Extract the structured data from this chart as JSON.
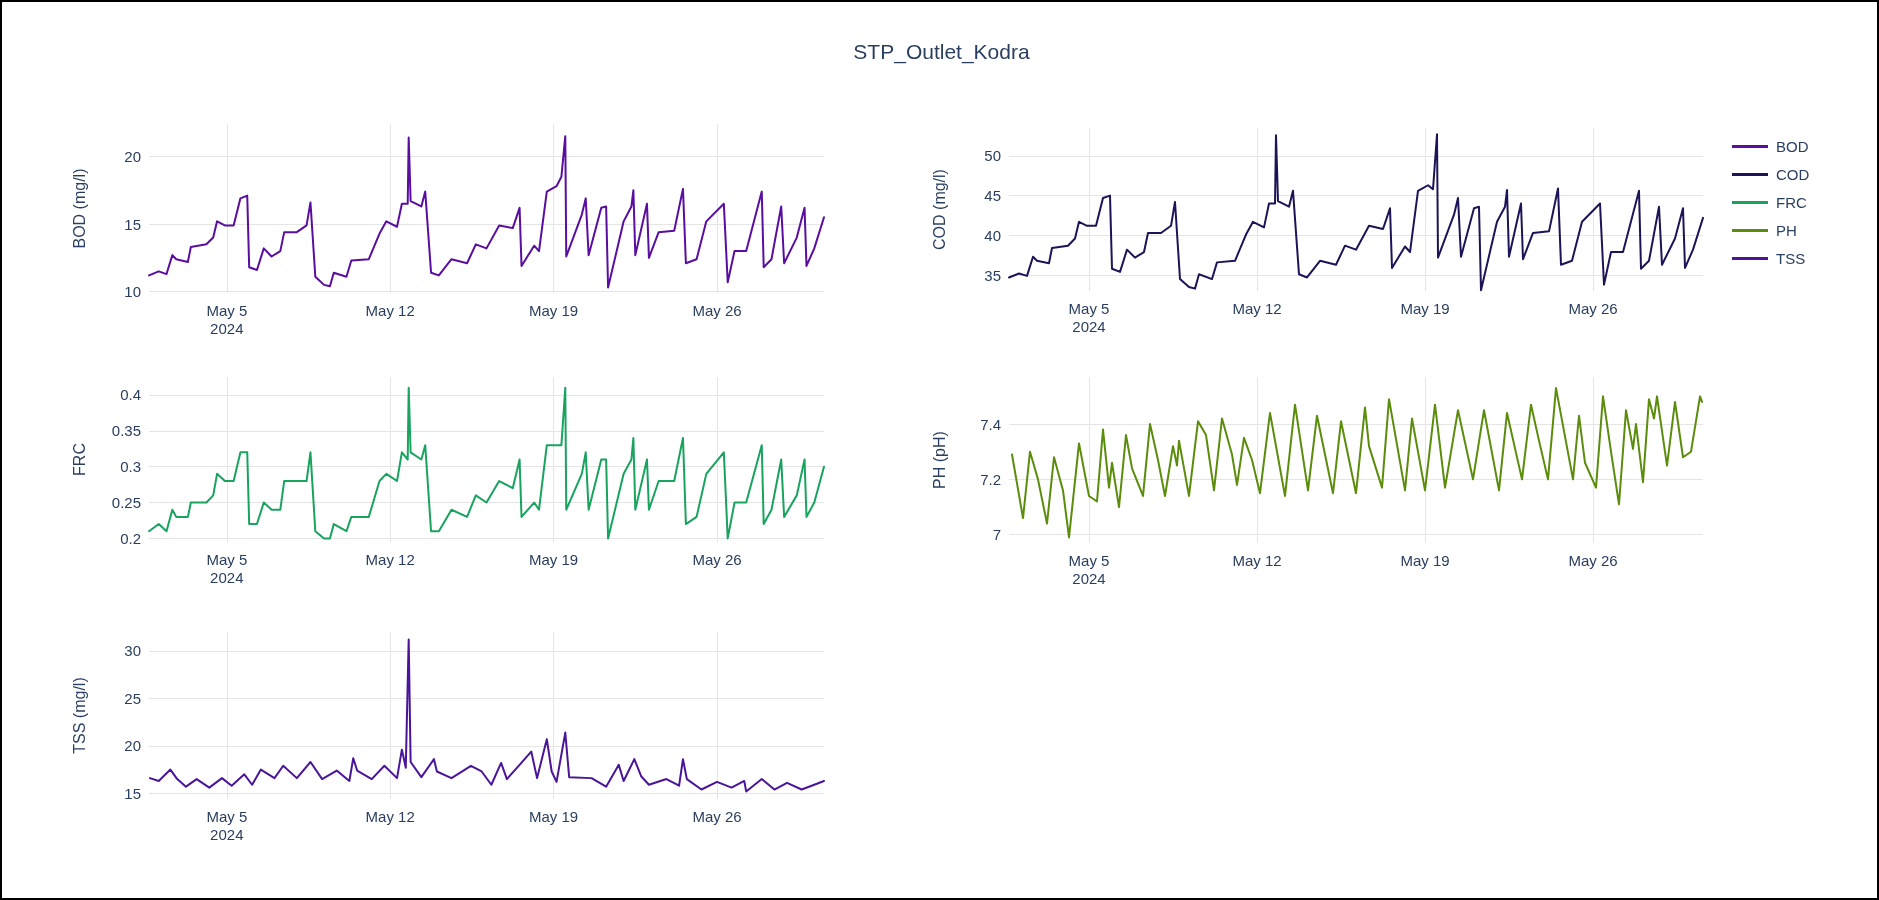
{
  "chart_data": [
    {
      "type": "line",
      "ylabel": "BOD (mg/l)",
      "legend": "top right",
      "grid": true,
      "x": [
        "2024-05-01T16:00",
        "2024-05-02T02:00",
        "2024-05-02T10:00",
        "2024-05-02T16:00",
        "2024-05-02T20:00",
        "2024-05-03T08:00",
        "2024-05-03T11:00",
        "2024-05-04T03:00",
        "2024-05-04T10:00",
        "2024-05-04T14:00",
        "2024-05-04T22:00",
        "2024-05-05T07:00",
        "2024-05-05T14:00",
        "2024-05-05T21:00",
        "2024-05-05T23:00",
        "2024-05-06T07:00",
        "2024-05-06T14:00",
        "2024-05-06T22:00",
        "2024-05-07T07:00",
        "2024-05-07T11:00",
        "2024-05-08T00:00",
        "2024-05-08T10:00",
        "2024-05-08T14:00",
        "2024-05-08T19:00",
        "2024-05-09T04:00",
        "2024-05-09T10:00",
        "2024-05-09T14:00",
        "2024-05-10T03:00",
        "2024-05-10T08:00",
        "2024-05-11T02:00",
        "2024-05-11T13:00",
        "2024-05-11T20:00",
        "2024-05-12T07:00",
        "2024-05-12T12:00",
        "2024-05-12T18:00",
        "2024-05-12T19:00",
        "2024-05-12T21:00",
        "2024-05-13T08:00",
        "2024-05-13T12:00",
        "2024-05-13T18:00",
        "2024-05-14T02:00",
        "2024-05-14T15:00",
        "2024-05-15T07:00",
        "2024-05-15T16:00",
        "2024-05-16T03:00",
        "2024-05-16T16:00",
        "2024-05-17T06:00",
        "2024-05-17T13:00",
        "2024-05-17T15:00",
        "2024-05-18T04:00",
        "2024-05-18T09:00",
        "2024-05-18T17:00",
        "2024-05-19T03:00",
        "2024-05-19T08:00",
        "2024-05-19T12:00",
        "2024-05-19T13:00",
        "2024-05-20T05:00",
        "2024-05-20T09:00",
        "2024-05-20T12:00",
        "2024-05-21T01:00",
        "2024-05-21T06:00",
        "2024-05-21T08:00",
        "2024-05-22T00:00",
        "2024-05-22T08:00",
        "2024-05-22T10:00",
        "2024-05-22T12:00",
        "2024-05-23T00:00",
        "2024-05-23T02:00",
        "2024-05-23T12:00",
        "2024-05-24T04:00",
        "2024-05-24T13:00",
        "2024-05-24T16:00",
        "2024-05-25T03:00",
        "2024-05-25T13:00",
        "2024-05-26T07:00",
        "2024-05-26T11:00",
        "2024-05-26T18:00",
        "2024-05-27T06:00",
        "2024-05-27T22:00",
        "2024-05-28T00:00",
        "2024-05-28T08:00",
        "2024-05-28T18:00",
        "2024-05-28T21:00",
        "2024-05-29T10:00",
        "2024-05-29T18:00",
        "2024-05-29T20:00",
        "2024-05-30T04:00",
        "2024-05-30T14:00"
      ],
      "series": [
        {
          "name": "BOD",
          "color": "#5a0ea0",
          "values": [
            11.2,
            11.5,
            11.3,
            12.7,
            12.4,
            12.2,
            13.3,
            13.5,
            14.0,
            15.2,
            14.9,
            14.9,
            16.9,
            17.1,
            11.8,
            11.6,
            13.2,
            12.6,
            13.0,
            14.4,
            14.4,
            14.9,
            16.6,
            11.1,
            10.5,
            10.4,
            11.4,
            11.1,
            12.3,
            12.4,
            14.3,
            15.2,
            14.8,
            16.5,
            16.5,
            21.4,
            16.7,
            16.3,
            17.4,
            11.4,
            11.2,
            12.4,
            12.1,
            13.5,
            13.2,
            14.9,
            14.7,
            16.2,
            11.9,
            13.4,
            13.0,
            17.4,
            17.8,
            18.5,
            21.5,
            12.6,
            15.7,
            16.9,
            12.7,
            16.2,
            16.3,
            10.3,
            15.2,
            16.3,
            17.5,
            12.7,
            16.5,
            12.5,
            14.4,
            14.5,
            17.6,
            12.1,
            12.4,
            15.2,
            16.5,
            10.7,
            13.0,
            13.0,
            17.4,
            11.8,
            12.4,
            16.3,
            12.1,
            14.0,
            16.2,
            11.9,
            13.2,
            15.5
          ]
        }
      ],
      "xlim": [
        "2024-05-01T16:00",
        "2024-05-30T14:00"
      ],
      "xticks": [
        {
          "value": "2024-05-05",
          "label": "May 5\n2024"
        },
        {
          "value": "2024-05-12",
          "label": "May 12"
        },
        {
          "value": "2024-05-19",
          "label": "May 19"
        },
        {
          "value": "2024-05-26",
          "label": "May 26"
        }
      ],
      "ylim": [
        9.9,
        22.4
      ],
      "yticks": [
        10,
        15,
        20
      ]
    },
    {
      "type": "line",
      "title": "STP_Outlet_Kodra",
      "ylabel": "COD (mg/l)",
      "legend": "top right",
      "grid": true,
      "x": [
        "2024-05-01T16:00",
        "2024-05-02T02:00",
        "2024-05-02T10:00",
        "2024-05-02T16:00",
        "2024-05-02T20:00",
        "2024-05-03T08:00",
        "2024-05-03T11:00",
        "2024-05-04T03:00",
        "2024-05-04T10:00",
        "2024-05-04T14:00",
        "2024-05-04T22:00",
        "2024-05-05T07:00",
        "2024-05-05T14:00",
        "2024-05-05T21:00",
        "2024-05-05T23:00",
        "2024-05-06T07:00",
        "2024-05-06T14:00",
        "2024-05-06T22:00",
        "2024-05-07T07:00",
        "2024-05-07T11:00",
        "2024-05-08T00:00",
        "2024-05-08T10:00",
        "2024-05-08T14:00",
        "2024-05-08T19:00",
        "2024-05-09T04:00",
        "2024-05-09T10:00",
        "2024-05-09T14:00",
        "2024-05-10T03:00",
        "2024-05-10T08:00",
        "2024-05-11T02:00",
        "2024-05-11T13:00",
        "2024-05-11T20:00",
        "2024-05-12T07:00",
        "2024-05-12T12:00",
        "2024-05-12T18:00",
        "2024-05-12T19:00",
        "2024-05-12T21:00",
        "2024-05-13T08:00",
        "2024-05-13T12:00",
        "2024-05-13T18:00",
        "2024-05-14T02:00",
        "2024-05-14T15:00",
        "2024-05-15T07:00",
        "2024-05-15T16:00",
        "2024-05-16T03:00",
        "2024-05-16T16:00",
        "2024-05-17T06:00",
        "2024-05-17T13:00",
        "2024-05-17T15:00",
        "2024-05-18T04:00",
        "2024-05-18T09:00",
        "2024-05-18T17:00",
        "2024-05-19T03:00",
        "2024-05-19T08:00",
        "2024-05-19T12:00",
        "2024-05-19T13:00",
        "2024-05-20T05:00",
        "2024-05-20T09:00",
        "2024-05-20T12:00",
        "2024-05-21T01:00",
        "2024-05-21T06:00",
        "2024-05-21T08:00",
        "2024-05-22T00:00",
        "2024-05-22T08:00",
        "2024-05-22T10:00",
        "2024-05-22T12:00",
        "2024-05-23T00:00",
        "2024-05-23T02:00",
        "2024-05-23T12:00",
        "2024-05-24T04:00",
        "2024-05-24T13:00",
        "2024-05-24T16:00",
        "2024-05-25T03:00",
        "2024-05-25T13:00",
        "2024-05-26T07:00",
        "2024-05-26T11:00",
        "2024-05-26T18:00",
        "2024-05-27T06:00",
        "2024-05-27T22:00",
        "2024-05-28T00:00",
        "2024-05-28T08:00",
        "2024-05-28T18:00",
        "2024-05-28T21:00",
        "2024-05-29T10:00",
        "2024-05-29T18:00",
        "2024-05-29T20:00",
        "2024-05-30T04:00",
        "2024-05-30T14:00"
      ],
      "series": [
        {
          "name": "COD",
          "color": "#1b1457",
          "values": [
            34.7,
            35.2,
            34.9,
            37.3,
            36.8,
            36.5,
            38.4,
            38.7,
            39.6,
            41.7,
            41.2,
            41.2,
            44.7,
            45.0,
            35.8,
            35.4,
            38.2,
            37.2,
            37.9,
            40.3,
            40.3,
            41.2,
            44.2,
            34.5,
            33.5,
            33.3,
            35.1,
            34.5,
            36.6,
            36.8,
            40.1,
            41.7,
            41.0,
            44.0,
            44.0,
            52.6,
            44.3,
            43.6,
            45.6,
            35.1,
            34.7,
            36.8,
            36.3,
            38.7,
            38.2,
            41.2,
            40.8,
            43.4,
            35.9,
            38.6,
            37.9,
            45.6,
            46.3,
            45.8,
            52.7,
            37.2,
            42.6,
            44.7,
            37.3,
            43.4,
            43.6,
            33.1,
            41.7,
            43.6,
            45.7,
            37.3,
            44.0,
            37.0,
            40.3,
            40.5,
            45.9,
            36.3,
            36.8,
            41.7,
            44.0,
            33.8,
            37.9,
            37.9,
            45.6,
            35.8,
            36.8,
            43.6,
            36.3,
            39.6,
            43.4,
            35.9,
            38.2,
            42.2
          ]
        }
      ],
      "xlim": [
        "2024-05-01T16:00",
        "2024-05-30T14:00"
      ],
      "xticks": [
        {
          "value": "2024-05-05",
          "label": "May 5\n2024"
        },
        {
          "value": "2024-05-12",
          "label": "May 12"
        },
        {
          "value": "2024-05-19",
          "label": "May 19"
        },
        {
          "value": "2024-05-26",
          "label": "May 26"
        }
      ],
      "ylim": [
        33,
        53.5
      ],
      "yticks": [
        35,
        40,
        45,
        50
      ]
    },
    {
      "type": "line",
      "ylabel": "FRC",
      "legend": "top right",
      "grid": true,
      "x": [
        "2024-05-01T16:00",
        "2024-05-02T02:00",
        "2024-05-02T10:00",
        "2024-05-02T16:00",
        "2024-05-02T20:00",
        "2024-05-03T08:00",
        "2024-05-03T11:00",
        "2024-05-04T03:00",
        "2024-05-04T10:00",
        "2024-05-04T14:00",
        "2024-05-04T22:00",
        "2024-05-05T07:00",
        "2024-05-05T14:00",
        "2024-05-05T21:00",
        "2024-05-05T23:00",
        "2024-05-06T07:00",
        "2024-05-06T14:00",
        "2024-05-06T22:00",
        "2024-05-07T07:00",
        "2024-05-07T11:00",
        "2024-05-08T00:00",
        "2024-05-08T10:00",
        "2024-05-08T14:00",
        "2024-05-08T19:00",
        "2024-05-09T04:00",
        "2024-05-09T10:00",
        "2024-05-09T14:00",
        "2024-05-10T03:00",
        "2024-05-10T08:00",
        "2024-05-11T02:00",
        "2024-05-11T13:00",
        "2024-05-11T20:00",
        "2024-05-12T07:00",
        "2024-05-12T12:00",
        "2024-05-12T18:00",
        "2024-05-12T19:00",
        "2024-05-12T21:00",
        "2024-05-13T08:00",
        "2024-05-13T12:00",
        "2024-05-13T18:00",
        "2024-05-14T02:00",
        "2024-05-14T15:00",
        "2024-05-15T07:00",
        "2024-05-15T16:00",
        "2024-05-16T03:00",
        "2024-05-16T16:00",
        "2024-05-17T06:00",
        "2024-05-17T13:00",
        "2024-05-17T15:00",
        "2024-05-18T04:00",
        "2024-05-18T09:00",
        "2024-05-18T17:00",
        "2024-05-19T03:00",
        "2024-05-19T08:00",
        "2024-05-19T12:00",
        "2024-05-19T13:00",
        "2024-05-20T05:00",
        "2024-05-20T09:00",
        "2024-05-20T12:00",
        "2024-05-21T01:00",
        "2024-05-21T06:00",
        "2024-05-21T08:00",
        "2024-05-22T00:00",
        "2024-05-22T08:00",
        "2024-05-22T10:00",
        "2024-05-22T12:00",
        "2024-05-23T00:00",
        "2024-05-23T02:00",
        "2024-05-23T12:00",
        "2024-05-24T04:00",
        "2024-05-24T13:00",
        "2024-05-24T16:00",
        "2024-05-25T03:00",
        "2024-05-25T13:00",
        "2024-05-26T07:00",
        "2024-05-26T11:00",
        "2024-05-26T18:00",
        "2024-05-27T06:00",
        "2024-05-27T22:00",
        "2024-05-28T00:00",
        "2024-05-28T08:00",
        "2024-05-28T18:00",
        "2024-05-28T21:00",
        "2024-05-29T10:00",
        "2024-05-29T18:00",
        "2024-05-29T20:00",
        "2024-05-30T04:00",
        "2024-05-30T14:00"
      ],
      "series": [
        {
          "name": "FRC",
          "color": "#18a35e",
          "values": [
            0.21,
            0.22,
            0.21,
            0.24,
            0.23,
            0.23,
            0.25,
            0.25,
            0.26,
            0.29,
            0.28,
            0.28,
            0.32,
            0.32,
            0.22,
            0.22,
            0.25,
            0.24,
            0.24,
            0.28,
            0.28,
            0.28,
            0.32,
            0.21,
            0.2,
            0.2,
            0.22,
            0.21,
            0.23,
            0.23,
            0.28,
            0.29,
            0.28,
            0.32,
            0.31,
            0.41,
            0.32,
            0.31,
            0.33,
            0.21,
            0.21,
            0.24,
            0.23,
            0.26,
            0.25,
            0.28,
            0.27,
            0.31,
            0.23,
            0.25,
            0.24,
            0.33,
            0.33,
            0.33,
            0.41,
            0.24,
            0.29,
            0.32,
            0.24,
            0.31,
            0.31,
            0.2,
            0.29,
            0.31,
            0.34,
            0.24,
            0.31,
            0.24,
            0.28,
            0.28,
            0.34,
            0.22,
            0.23,
            0.29,
            0.32,
            0.2,
            0.25,
            0.25,
            0.33,
            0.22,
            0.24,
            0.31,
            0.23,
            0.26,
            0.31,
            0.23,
            0.25,
            0.3
          ]
        }
      ],
      "xlim": [
        "2024-05-01T16:00",
        "2024-05-30T14:00"
      ],
      "xticks": [
        {
          "value": "2024-05-05",
          "label": "May 5\n2024"
        },
        {
          "value": "2024-05-12",
          "label": "May 12"
        },
        {
          "value": "2024-05-19",
          "label": "May 19"
        },
        {
          "value": "2024-05-26",
          "label": "May 26"
        }
      ],
      "ylim": [
        0.195,
        0.425
      ],
      "yticks": [
        0.2,
        0.25,
        0.3,
        0.35,
        0.4
      ]
    },
    {
      "type": "line",
      "ylabel": "PH (pH)",
      "legend": "top right",
      "grid": true,
      "x": [
        "2024-05-01T19:00",
        "2024-05-02T06:00",
        "2024-05-02T13:00",
        "2024-05-02T21:00",
        "2024-05-03T06:00",
        "2024-05-03T13:00",
        "2024-05-03T22:00",
        "2024-05-04T04:00",
        "2024-05-04T14:00",
        "2024-05-05T00:00",
        "2024-05-05T08:00",
        "2024-05-05T14:00",
        "2024-05-05T20:00",
        "2024-05-05T23:00",
        "2024-05-06T06:00",
        "2024-05-06T13:00",
        "2024-05-06T19:00",
        "2024-05-07T06:00",
        "2024-05-07T13:00",
        "2024-05-07T21:00",
        "2024-05-08T04:00",
        "2024-05-08T12:00",
        "2024-05-08T16:00",
        "2024-05-08T18:00",
        "2024-05-09T04:00",
        "2024-05-09T13:00",
        "2024-05-09T21:00",
        "2024-05-10T05:00",
        "2024-05-10T13:00",
        "2024-05-10T23:00",
        "2024-05-11T04:00",
        "2024-05-11T11:00",
        "2024-05-11T19:00",
        "2024-05-12T03:00",
        "2024-05-12T13:00",
        "2024-05-13T04:00",
        "2024-05-13T14:00",
        "2024-05-14T03:00",
        "2024-05-14T12:00",
        "2024-05-15T04:00",
        "2024-05-15T12:00",
        "2024-05-16T03:00",
        "2024-05-16T12:00",
        "2024-05-16T16:00",
        "2024-05-17T05:00",
        "2024-05-17T12:00",
        "2024-05-18T04:00",
        "2024-05-18T11:00",
        "2024-05-19T00:00",
        "2024-05-19T10:00",
        "2024-05-19T20:00",
        "2024-05-20T09:00",
        "2024-05-21T00:00",
        "2024-05-21T11:00",
        "2024-05-22T02:00",
        "2024-05-22T10:00",
        "2024-05-23T01:00",
        "2024-05-23T10:00",
        "2024-05-23T18:00",
        "2024-05-24T03:00",
        "2024-05-24T11:00",
        "2024-05-25T04:00",
        "2024-05-25T10:00",
        "2024-05-25T16:00",
        "2024-05-26T03:00",
        "2024-05-26T10:00",
        "2024-05-26T18:00",
        "2024-05-27T02:00",
        "2024-05-27T09:00",
        "2024-05-27T16:00",
        "2024-05-27T19:00",
        "2024-05-28T02:00",
        "2024-05-28T08:00",
        "2024-05-28T13:00",
        "2024-05-28T16:00",
        "2024-05-29T02:00",
        "2024-05-29T10:00",
        "2024-05-29T18:00",
        "2024-05-30T02:00",
        "2024-05-30T11:00",
        "2024-05-30T13:00"
      ],
      "series": [
        {
          "name": "PH",
          "color": "#5b8c0c",
          "values": [
            7.29,
            7.06,
            7.3,
            7.2,
            7.04,
            7.28,
            7.16,
            6.99,
            7.33,
            7.14,
            7.12,
            7.38,
            7.17,
            7.26,
            7.1,
            7.36,
            7.24,
            7.14,
            7.4,
            7.27,
            7.14,
            7.32,
            7.25,
            7.34,
            7.14,
            7.41,
            7.36,
            7.16,
            7.42,
            7.29,
            7.18,
            7.35,
            7.27,
            7.15,
            7.44,
            7.14,
            7.47,
            7.16,
            7.43,
            7.15,
            7.41,
            7.15,
            7.46,
            7.32,
            7.17,
            7.49,
            7.16,
            7.42,
            7.16,
            7.47,
            7.17,
            7.45,
            7.2,
            7.45,
            7.16,
            7.44,
            7.2,
            7.47,
            7.34,
            7.2,
            7.53,
            7.2,
            7.43,
            7.26,
            7.17,
            7.5,
            7.3,
            7.11,
            7.45,
            7.31,
            7.4,
            7.19,
            7.49,
            7.42,
            7.5,
            7.25,
            7.48,
            7.28,
            7.3,
            7.5,
            7.48
          ]
        }
      ],
      "xlim": [
        "2024-05-01T16:00",
        "2024-05-30T14:00"
      ],
      "xticks": [
        {
          "value": "2024-05-05",
          "label": "May 5\n2024"
        },
        {
          "value": "2024-05-12",
          "label": "May 12"
        },
        {
          "value": "2024-05-19",
          "label": "May 19"
        },
        {
          "value": "2024-05-26",
          "label": "May 26"
        }
      ],
      "ylim": [
        6.97,
        7.57
      ],
      "yticks": [
        7,
        7.2,
        7.4
      ]
    },
    {
      "type": "line",
      "ylabel": "TSS (mg/l)",
      "legend": "top right",
      "grid": true,
      "x": [
        "2024-05-01T17:00",
        "2024-05-02T02:00",
        "2024-05-02T14:00",
        "2024-05-02T21:00",
        "2024-05-03T06:00",
        "2024-05-03T17:00",
        "2024-05-04T06:00",
        "2024-05-04T19:00",
        "2024-05-05T05:00",
        "2024-05-05T18:00",
        "2024-05-06T02:00",
        "2024-05-06T11:00",
        "2024-05-07T01:00",
        "2024-05-07T10:00",
        "2024-05-08T00:00",
        "2024-05-08T14:00",
        "2024-05-09T02:00",
        "2024-05-09T17:00",
        "2024-05-10T06:00",
        "2024-05-10T10:00",
        "2024-05-10T14:00",
        "2024-05-11T05:00",
        "2024-05-11T18:00",
        "2024-05-12T07:00",
        "2024-05-12T12:00",
        "2024-05-12T16:00",
        "2024-05-12T19:00",
        "2024-05-12T21:00",
        "2024-05-13T08:00",
        "2024-05-13T21:00",
        "2024-05-14T00:00",
        "2024-05-14T15:00",
        "2024-05-15T11:00",
        "2024-05-15T22:00",
        "2024-05-16T08:00",
        "2024-05-16T18:00",
        "2024-05-17T00:00",
        "2024-05-17T13:00",
        "2024-05-18T01:00",
        "2024-05-18T07:00",
        "2024-05-18T17:00",
        "2024-05-18T22:00",
        "2024-05-19T03:00",
        "2024-05-19T12:00",
        "2024-05-19T16:00",
        "2024-05-20T15:00",
        "2024-05-21T06:00",
        "2024-05-21T19:00",
        "2024-05-22T00:00",
        "2024-05-22T11:00",
        "2024-05-22T18:00",
        "2024-05-23T02:00",
        "2024-05-23T20:00",
        "2024-05-24T09:00",
        "2024-05-24T13:00",
        "2024-05-24T17:00",
        "2024-05-25T08:00",
        "2024-05-26T00:00",
        "2024-05-26T15:00",
        "2024-05-27T04:00",
        "2024-05-27T06:00",
        "2024-05-27T22:00",
        "2024-05-28T11:00",
        "2024-05-29T00:00",
        "2024-05-29T15:00",
        "2024-05-30T04:00",
        "2024-05-30T14:00"
      ],
      "series": [
        {
          "name": "TSS",
          "color": "#4a1599",
          "values": [
            16.6,
            16.3,
            17.5,
            16.5,
            15.7,
            16.5,
            15.6,
            16.6,
            15.8,
            17.0,
            15.9,
            17.5,
            16.6,
            17.9,
            16.6,
            18.3,
            16.5,
            17.4,
            16.3,
            18.7,
            17.4,
            16.5,
            17.9,
            16.6,
            19.6,
            17.7,
            31.2,
            18.3,
            16.7,
            18.6,
            17.3,
            16.6,
            17.9,
            17.3,
            15.9,
            18.2,
            16.5,
            18.0,
            19.4,
            16.6,
            20.7,
            17.3,
            16.2,
            21.4,
            16.7,
            16.6,
            15.7,
            18.0,
            16.3,
            18.6,
            16.8,
            15.9,
            16.5,
            15.8,
            18.6,
            16.5,
            15.4,
            16.2,
            15.6,
            16.3,
            15.2,
            16.5,
            15.4,
            16.1,
            15.4,
            15.9,
            16.3
          ]
        }
      ],
      "xlim": [
        "2024-05-01T16:00",
        "2024-05-30T14:00"
      ],
      "xticks": [
        {
          "value": "2024-05-05",
          "label": "May 5\n2024"
        },
        {
          "value": "2024-05-12",
          "label": "May 12"
        },
        {
          "value": "2024-05-19",
          "label": "May 19"
        },
        {
          "value": "2024-05-26",
          "label": "May 26"
        }
      ],
      "ylim": [
        14.4,
        32
      ],
      "yticks": [
        15,
        20,
        25,
        30
      ]
    }
  ]
}
